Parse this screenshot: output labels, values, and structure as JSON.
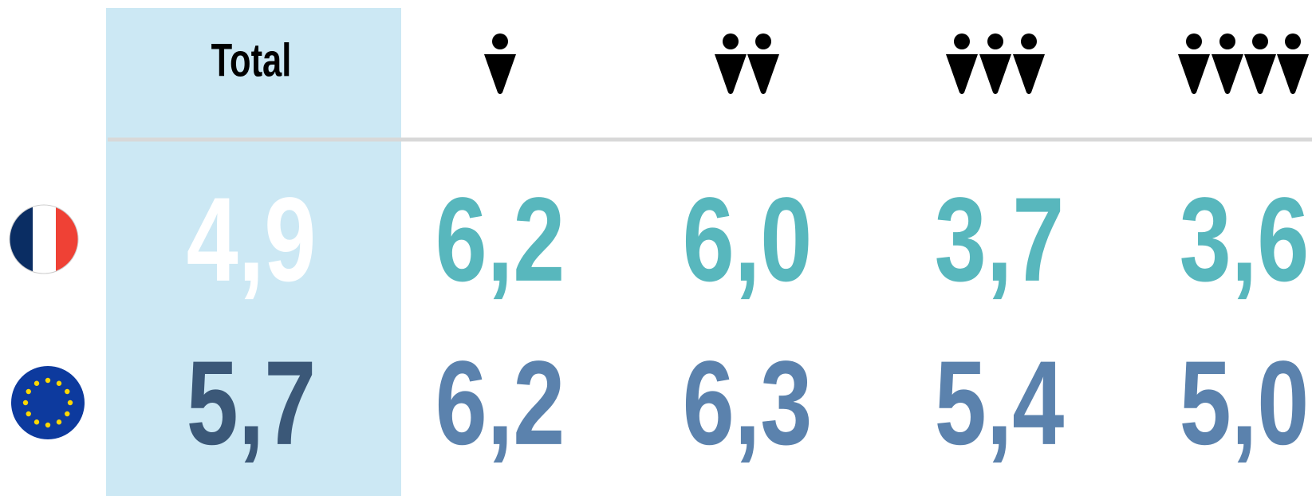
{
  "table": {
    "header": [
      "Total"
    ],
    "rows": [
      [
        "4,9",
        "6,2",
        "6,0",
        "3,7",
        "3,6"
      ],
      [
        "5,7",
        "6,2",
        "6,3",
        "5,4",
        "5,0"
      ]
    ]
  }
}
